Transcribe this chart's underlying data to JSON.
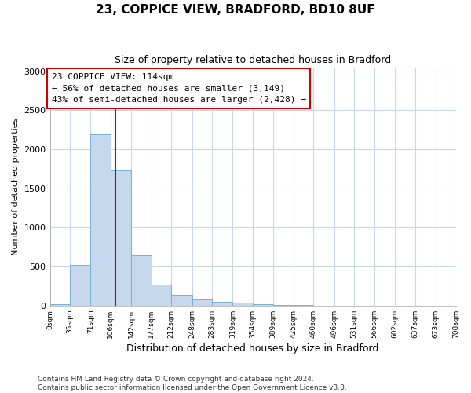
{
  "title1": "23, COPPICE VIEW, BRADFORD, BD10 8UF",
  "title2": "Size of property relative to detached houses in Bradford",
  "xlabel": "Distribution of detached houses by size in Bradford",
  "ylabel": "Number of detached properties",
  "bar_color": "#c5d8ee",
  "bar_edge_color": "#7aafd4",
  "plot_bg_color": "#ffffff",
  "fig_bg_color": "#ffffff",
  "grid_color": "#c8d8e8",
  "vline_x": 114,
  "vline_color": "#cc0000",
  "annotation_text": "23 COPPICE VIEW: 114sqm\n← 56% of detached houses are smaller (3,149)\n43% of semi-detached houses are larger (2,428) →",
  "annotation_box_facecolor": "#ffffff",
  "annotation_box_edgecolor": "#cc0000",
  "footer_line1": "Contains HM Land Registry data © Crown copyright and database right 2024.",
  "footer_line2": "Contains public sector information licensed under the Open Government Licence v3.0.",
  "bin_edges": [
    0,
    35,
    71,
    106,
    142,
    177,
    212,
    248,
    283,
    319,
    354,
    389,
    425,
    460,
    496,
    531,
    566,
    602,
    637,
    673,
    708
  ],
  "bin_labels": [
    "0sqm",
    "35sqm",
    "71sqm",
    "106sqm",
    "142sqm",
    "177sqm",
    "212sqm",
    "248sqm",
    "283sqm",
    "319sqm",
    "354sqm",
    "389sqm",
    "425sqm",
    "460sqm",
    "496sqm",
    "531sqm",
    "566sqm",
    "602sqm",
    "637sqm",
    "673sqm",
    "708sqm"
  ],
  "counts": [
    20,
    520,
    2190,
    1740,
    640,
    265,
    135,
    80,
    45,
    35,
    20,
    5,
    5,
    3,
    0,
    0,
    0,
    0,
    0,
    0
  ],
  "ylim": [
    0,
    3050
  ],
  "yticks": [
    0,
    500,
    1000,
    1500,
    2000,
    2500,
    3000
  ]
}
